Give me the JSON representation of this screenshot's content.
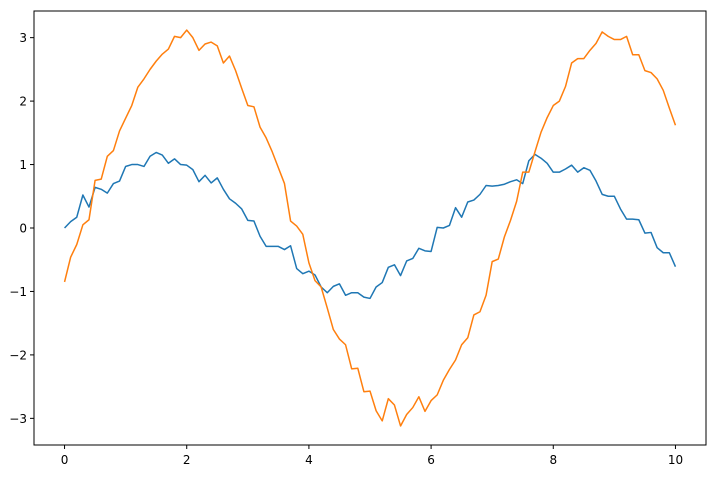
{
  "chart_data": {
    "type": "line",
    "title": "",
    "xlabel": "",
    "ylabel": "",
    "xlim": [
      -0.5,
      10.5
    ],
    "ylim": [
      -3.42,
      3.42
    ],
    "xticks": [
      0,
      2,
      4,
      6,
      8,
      10
    ],
    "yticks": [
      -3,
      -2,
      -1,
      0,
      1,
      2,
      3
    ],
    "xtick_labels": [
      "0",
      "2",
      "4",
      "6",
      "8",
      "10"
    ],
    "ytick_labels": [
      "−3",
      "−2",
      "−1",
      "0",
      "1",
      "2",
      "3"
    ],
    "grid": false,
    "legend": "none",
    "x": [
      0.0,
      0.1,
      0.2,
      0.3,
      0.4,
      0.5,
      0.6,
      0.7,
      0.8,
      0.9,
      1.0,
      1.1,
      1.2,
      1.3,
      1.4,
      1.5,
      1.6,
      1.7,
      1.8,
      1.9,
      2.0,
      2.1,
      2.2,
      2.3,
      2.4,
      2.5,
      2.6,
      2.7,
      2.8,
      2.9,
      3.0,
      3.1,
      3.2,
      3.3,
      3.4,
      3.5,
      3.6,
      3.7,
      3.8,
      3.9,
      4.0,
      4.1,
      4.2,
      4.3,
      4.4,
      4.5,
      4.6,
      4.7,
      4.8,
      4.9,
      5.0,
      5.1,
      5.2,
      5.3,
      5.4,
      5.5,
      5.6,
      5.7,
      5.8,
      5.9,
      6.0,
      6.1,
      6.2,
      6.3,
      6.4,
      6.5,
      6.6,
      6.7,
      6.8,
      6.9,
      7.0,
      7.1,
      7.2,
      7.3,
      7.4,
      7.5,
      7.6,
      7.7,
      7.8,
      7.9,
      8.0,
      8.1,
      8.2,
      8.3,
      8.4,
      8.5,
      8.6,
      8.7,
      8.8,
      8.9,
      9.0,
      9.1,
      9.2,
      9.3,
      9.4,
      9.5,
      9.6,
      9.7,
      9.8,
      9.9,
      10.0
    ],
    "series": [
      {
        "color": "#1f77b4",
        "values": [
          0.0,
          0.1,
          0.17,
          0.52,
          0.33,
          0.64,
          0.61,
          0.55,
          0.7,
          0.74,
          0.97,
          1.0,
          1.0,
          0.97,
          1.13,
          1.19,
          1.15,
          1.02,
          1.09,
          1.0,
          0.99,
          0.92,
          0.73,
          0.83,
          0.71,
          0.79,
          0.61,
          0.46,
          0.39,
          0.3,
          0.12,
          0.11,
          -0.13,
          -0.29,
          -0.29,
          -0.29,
          -0.34,
          -0.28,
          -0.64,
          -0.72,
          -0.68,
          -0.74,
          -0.93,
          -1.02,
          -0.92,
          -0.88,
          -1.06,
          -1.02,
          -1.02,
          -1.09,
          -1.11,
          -0.93,
          -0.86,
          -0.62,
          -0.58,
          -0.75,
          -0.52,
          -0.48,
          -0.32,
          -0.36,
          -0.37,
          0.01,
          0.0,
          0.04,
          0.32,
          0.17,
          0.41,
          0.44,
          0.53,
          0.67,
          0.66,
          0.67,
          0.69,
          0.73,
          0.76,
          0.7,
          1.06,
          1.16,
          1.1,
          1.02,
          0.88,
          0.88,
          0.93,
          0.99,
          0.88,
          0.95,
          0.91,
          0.74,
          0.53,
          0.5,
          0.5,
          0.3,
          0.14,
          0.14,
          0.13,
          -0.08,
          -0.07,
          -0.31,
          -0.39,
          -0.39,
          -0.61
        ]
      },
      {
        "color": "#ff7f0e",
        "values": [
          -0.85,
          -0.46,
          -0.26,
          0.05,
          0.13,
          0.75,
          0.77,
          1.13,
          1.22,
          1.53,
          1.73,
          1.93,
          2.22,
          2.35,
          2.5,
          2.63,
          2.74,
          2.82,
          3.02,
          3.0,
          3.12,
          3.0,
          2.8,
          2.9,
          2.93,
          2.87,
          2.6,
          2.71,
          2.48,
          2.2,
          1.93,
          1.91,
          1.59,
          1.42,
          1.2,
          0.95,
          0.7,
          0.11,
          0.03,
          -0.1,
          -0.55,
          -0.83,
          -0.93,
          -1.26,
          -1.6,
          -1.75,
          -1.84,
          -2.22,
          -2.21,
          -2.58,
          -2.57,
          -2.88,
          -3.04,
          -2.69,
          -2.79,
          -3.12,
          -2.94,
          -2.83,
          -2.66,
          -2.89,
          -2.72,
          -2.63,
          -2.4,
          -2.23,
          -2.08,
          -1.84,
          -1.73,
          -1.37,
          -1.32,
          -1.06,
          -0.53,
          -0.49,
          -0.14,
          0.12,
          0.42,
          0.88,
          0.88,
          1.2,
          1.51,
          1.74,
          1.93,
          2.0,
          2.23,
          2.6,
          2.67,
          2.67,
          2.8,
          2.91,
          3.09,
          3.02,
          2.97,
          2.97,
          3.02,
          2.73,
          2.73,
          2.48,
          2.45,
          2.35,
          2.17,
          1.89,
          1.62
        ]
      }
    ]
  }
}
